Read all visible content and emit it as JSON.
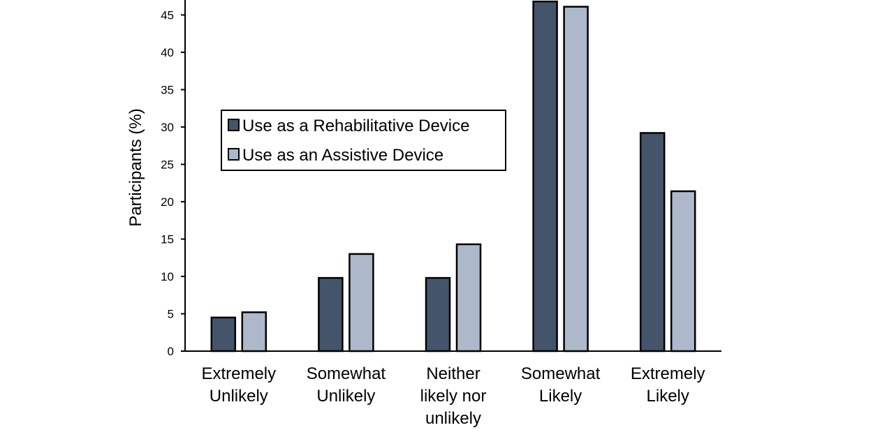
{
  "chart_data": {
    "type": "bar",
    "title": "",
    "xlabel": "",
    "ylabel": "Participants (%)",
    "ylim": [
      0,
      47
    ],
    "yticks": [
      0,
      5,
      10,
      15,
      20,
      25,
      30,
      35,
      40,
      45
    ],
    "categories": [
      [
        "Extremely",
        "Unlikely"
      ],
      [
        "Somewhat",
        "Unlikely"
      ],
      [
        "Neither",
        "likely nor",
        "unlikely"
      ],
      [
        "Somewhat",
        "Likely"
      ],
      [
        "Extremely",
        "Likely"
      ]
    ],
    "series": [
      {
        "name": "Use as a Rehabilitative Device",
        "color": "#44546a",
        "values": [
          4.5,
          9.8,
          9.8,
          46.8,
          29.2
        ]
      },
      {
        "name": "Use as an Assistive Device",
        "color": "#adb9ca",
        "values": [
          5.2,
          13.0,
          14.3,
          46.1,
          21.4
        ]
      }
    ],
    "grid": false,
    "legend_position": "upper-left"
  }
}
